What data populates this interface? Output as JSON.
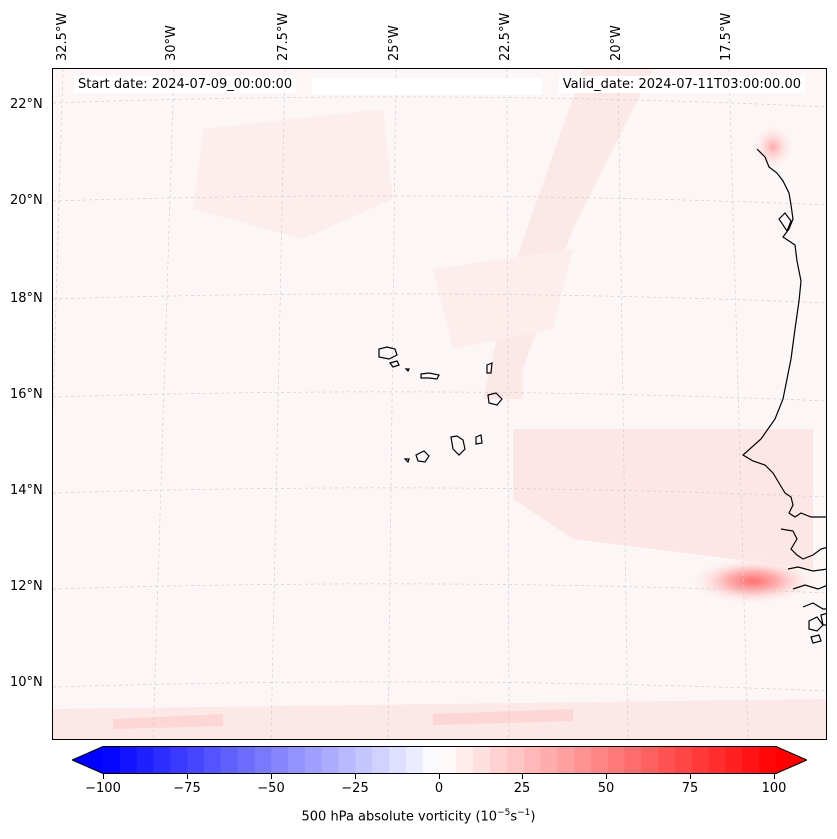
{
  "header": {
    "start_date": "Start date: 2024-07-09_00:00:00",
    "valid_date": "Valid_date: 2024-07-11T03:00:00.00"
  },
  "longitude_labels": [
    "32.5°W",
    "30°W",
    "27.5°W",
    "25°W",
    "22.5°W",
    "20°W",
    "17.5°W"
  ],
  "latitude_labels": [
    "22°N",
    "20°N",
    "18°N",
    "16°N",
    "14°N",
    "12°N",
    "10°N"
  ],
  "colorbar": {
    "label_prefix": "500 hPa absolute vorticity (10",
    "label_exp1": "−5",
    "label_mid": "s",
    "label_exp2": "−1",
    "label_suffix": ")",
    "ticks": [
      "−100",
      "−75",
      "−50",
      "−25",
      "0",
      "25",
      "50",
      "75",
      "100"
    ],
    "min": -100,
    "max": 100,
    "low_color": "#0000ff",
    "mid_color": "#ffffff",
    "high_color": "#ff0000"
  },
  "map_data": {
    "field": "500 hPa absolute vorticity",
    "units": "1e-5 s^-1",
    "lon_range": [
      -32.8,
      -15.2
    ],
    "lat_range": [
      8.8,
      22.8
    ],
    "features": [
      "Cape Verde islands",
      "West African coastline (Senegal, Gambia, Guinea-Bissau)"
    ],
    "vorticity_max_location": "near 12.2°N, 17.8°W"
  }
}
